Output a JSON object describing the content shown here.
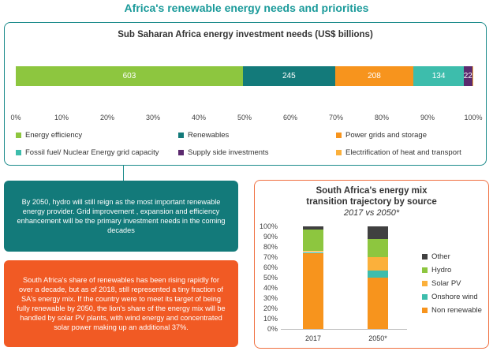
{
  "page_title": "Africa's renewable energy needs and priorities",
  "notes": {
    "teal": "By 2050, hydro will still reign as the most important renewable energy provider. Grid improvement , expansion and efficiency enhancement will be the primary investment needs in the coming decades",
    "orange": "South Africa's share of renewables has been rising rapidly for over a decade, but as of 2018, still represented a tiny fraction of SA's energy mix. If the country were to meet its target of being fully renewable by 2050, the lion's share of the energy mix will be handled by solar PV plants, with wind energy and concentrated solar power making up an additional 37%."
  },
  "chart_data": [
    {
      "type": "bar",
      "orientation": "horizontal-stacked-100",
      "title": "Sub Saharan Africa energy investment needs (US$ billions)",
      "series": [
        {
          "name": "Energy efficiency",
          "value": 603,
          "label": "603",
          "color": "#8dc63f"
        },
        {
          "name": "Renewables",
          "value": 245,
          "label": "245",
          "color": "#137a7a"
        },
        {
          "name": "Power grids and storage",
          "value": 208,
          "label": "208",
          "color": "#f7941d"
        },
        {
          "name": "Fossil fuel/ Nuclear Energy grid capacity",
          "value": 134,
          "label": "134",
          "color": "#3dbdac"
        },
        {
          "name": "Supply side investments",
          "value": 22,
          "label": "22",
          "color": "#5b2a6e"
        },
        {
          "name": "Electrification of heat and transport",
          "value": 3,
          "label": "",
          "color": "#fbb03b"
        }
      ],
      "x_ticks": [
        "0%",
        "10%",
        "20%",
        "30%",
        "40%",
        "50%",
        "60%",
        "70%",
        "80%",
        "90%",
        "100%"
      ],
      "xlim": [
        0,
        100
      ],
      "legend_order": [
        "Energy efficiency",
        "Renewables",
        "Power grids and storage",
        "Fossil fuel/ Nuclear Energy grid capacity",
        "Supply side investments",
        "Electrification of heat and transport"
      ]
    },
    {
      "type": "bar",
      "orientation": "vertical-stacked-100",
      "title": "South Africa's energy mix transition trajectory by source",
      "subtitle": "2017 vs 2050*",
      "categories": [
        "2017",
        "2050*"
      ],
      "series": [
        {
          "name": "Non renewable",
          "values": [
            74,
            50
          ],
          "color": "#f7941d"
        },
        {
          "name": "Onshore wind",
          "values": [
            1,
            7
          ],
          "color": "#3dbdac"
        },
        {
          "name": "Solar PV",
          "values": [
            1,
            13
          ],
          "color": "#fbb03b"
        },
        {
          "name": "Hydro",
          "values": [
            21,
            18
          ],
          "color": "#8dc63f"
        },
        {
          "name": "Other",
          "values": [
            3,
            12
          ],
          "color": "#404040"
        }
      ],
      "legend_order": [
        "Other",
        "Hydro",
        "Solar PV",
        "Onshore wind",
        "Non renewable"
      ],
      "y_ticks": [
        "100%",
        "90%",
        "80%",
        "70%",
        "60%",
        "50%",
        "40%",
        "30%",
        "20%",
        "10%",
        "0%"
      ],
      "ylim": [
        0,
        100
      ]
    }
  ]
}
